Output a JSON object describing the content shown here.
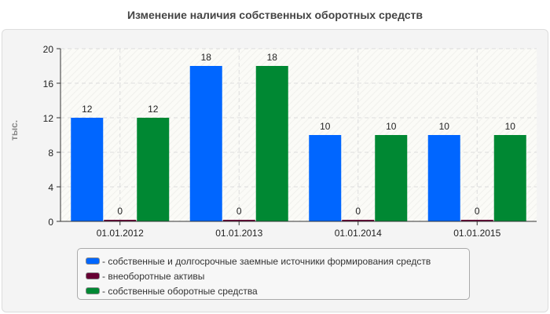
{
  "chart_data": {
    "type": "bar",
    "title": "Изменение наличия собственных оборотных средств",
    "ylabel": "тыс.",
    "xlabel": "",
    "ylim": [
      0,
      20
    ],
    "yticks": [
      0,
      4,
      8,
      12,
      16,
      20
    ],
    "grid": true,
    "legend_position": "bottom",
    "categories": [
      "01.01.2012",
      "01.01.2013",
      "01.01.2014",
      "01.01.2015"
    ],
    "series": [
      {
        "name": "- собственные и долгосрочные заемные источники формирования средств",
        "color": "#0066ff",
        "values": [
          12,
          18,
          10,
          10
        ]
      },
      {
        "name": "- внеоборотные активы",
        "color": "#660033",
        "values": [
          0,
          0,
          0,
          0
        ]
      },
      {
        "name": "- собственные оборотные средства",
        "color": "#008833",
        "values": [
          12,
          18,
          10,
          10
        ]
      }
    ]
  }
}
